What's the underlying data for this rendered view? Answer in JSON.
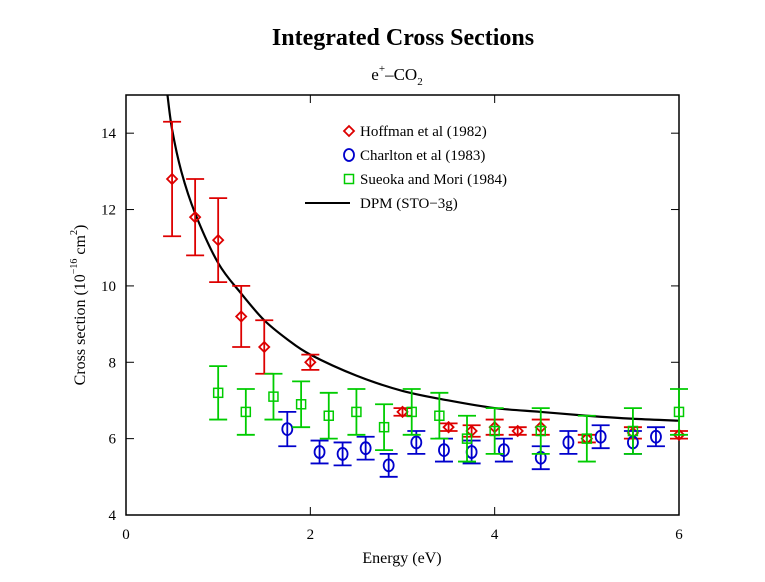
{
  "chart_data": {
    "type": "scatter",
    "title": "Integrated Cross Sections",
    "subtitle": {
      "base": "e",
      "sup": "+",
      "dash": "–",
      "mol": "CO",
      "sub": "2"
    },
    "xlabel": "Energy (eV)",
    "ylabel": {
      "prefix": "Cross section (10",
      "sup": "−16",
      "mid": " cm",
      "sup2": "2",
      "suffix": ")"
    },
    "xlim": [
      0,
      6
    ],
    "ylim": [
      4,
      15
    ],
    "xticks": [
      "0",
      "2",
      "4",
      "6"
    ],
    "yticks": [
      "4",
      "6",
      "8",
      "10",
      "12",
      "14"
    ],
    "legend_position": "top-right",
    "grid": false,
    "series": [
      {
        "name": "Hoffman et al (1982)",
        "marker": "diamond",
        "color": "#dd0000",
        "points": [
          {
            "x": 0.5,
            "y": 12.8,
            "err": 1.5
          },
          {
            "x": 0.75,
            "y": 11.8,
            "err": 1.0
          },
          {
            "x": 1.0,
            "y": 11.2,
            "err": 1.1
          },
          {
            "x": 1.25,
            "y": 9.2,
            "err": 0.8
          },
          {
            "x": 1.5,
            "y": 8.4,
            "err": 0.7
          },
          {
            "x": 2.0,
            "y": 8.0,
            "err": 0.2
          },
          {
            "x": 3.0,
            "y": 6.7,
            "err": 0.1
          },
          {
            "x": 3.5,
            "y": 6.3,
            "err": 0.1
          },
          {
            "x": 3.75,
            "y": 6.2,
            "err": 0.15
          },
          {
            "x": 4.0,
            "y": 6.3,
            "err": 0.2
          },
          {
            "x": 4.25,
            "y": 6.2,
            "err": 0.1
          },
          {
            "x": 4.5,
            "y": 6.3,
            "err": 0.2
          },
          {
            "x": 5.0,
            "y": 6.0,
            "err": 0.1
          },
          {
            "x": 5.5,
            "y": 6.15,
            "err": 0.15
          },
          {
            "x": 6.0,
            "y": 6.1,
            "err": 0.1
          }
        ]
      },
      {
        "name": "Charlton et al (1983)",
        "marker": "circle",
        "color": "#0000cc",
        "points": [
          {
            "x": 1.75,
            "y": 6.25,
            "err": 0.45
          },
          {
            "x": 2.1,
            "y": 5.65,
            "err": 0.3
          },
          {
            "x": 2.35,
            "y": 5.6,
            "err": 0.3
          },
          {
            "x": 2.6,
            "y": 5.75,
            "err": 0.3
          },
          {
            "x": 2.85,
            "y": 5.3,
            "err": 0.3
          },
          {
            "x": 3.15,
            "y": 5.9,
            "err": 0.3
          },
          {
            "x": 3.45,
            "y": 5.7,
            "err": 0.3
          },
          {
            "x": 3.75,
            "y": 5.65,
            "err": 0.3
          },
          {
            "x": 4.1,
            "y": 5.7,
            "err": 0.3
          },
          {
            "x": 4.5,
            "y": 5.5,
            "err": 0.3
          },
          {
            "x": 4.8,
            "y": 5.9,
            "err": 0.3
          },
          {
            "x": 5.15,
            "y": 6.05,
            "err": 0.3
          },
          {
            "x": 5.5,
            "y": 5.9,
            "err": 0.3
          },
          {
            "x": 5.75,
            "y": 6.05,
            "err": 0.25
          }
        ]
      },
      {
        "name": "Sueoka and Mori (1984)",
        "marker": "square",
        "color": "#00cc00",
        "points": [
          {
            "x": 1.0,
            "y": 7.2,
            "err": 0.7
          },
          {
            "x": 1.3,
            "y": 6.7,
            "err": 0.6
          },
          {
            "x": 1.6,
            "y": 7.1,
            "err": 0.6
          },
          {
            "x": 1.9,
            "y": 6.9,
            "err": 0.6
          },
          {
            "x": 2.2,
            "y": 6.6,
            "err": 0.6
          },
          {
            "x": 2.5,
            "y": 6.7,
            "err": 0.6
          },
          {
            "x": 2.8,
            "y": 6.3,
            "err": 0.6
          },
          {
            "x": 3.1,
            "y": 6.7,
            "err": 0.6
          },
          {
            "x": 3.4,
            "y": 6.6,
            "err": 0.6
          },
          {
            "x": 3.7,
            "y": 6.0,
            "err": 0.6
          },
          {
            "x": 4.0,
            "y": 6.2,
            "err": 0.6
          },
          {
            "x": 4.5,
            "y": 6.2,
            "err": 0.6
          },
          {
            "x": 5.0,
            "y": 6.0,
            "err": 0.6
          },
          {
            "x": 5.5,
            "y": 6.2,
            "err": 0.6
          },
          {
            "x": 6.0,
            "y": 6.7,
            "err": 0.6
          }
        ]
      },
      {
        "name": "DPM (STO−3g)",
        "marker": "line",
        "color": "#000000",
        "points": [
          {
            "x": 0.45,
            "y": 15.0
          },
          {
            "x": 0.5,
            "y": 14.1
          },
          {
            "x": 0.6,
            "y": 13.0
          },
          {
            "x": 0.75,
            "y": 11.9
          },
          {
            "x": 1.0,
            "y": 10.6
          },
          {
            "x": 1.25,
            "y": 9.8
          },
          {
            "x": 1.5,
            "y": 9.1
          },
          {
            "x": 1.75,
            "y": 8.6
          },
          {
            "x": 2.0,
            "y": 8.2
          },
          {
            "x": 2.5,
            "y": 7.65
          },
          {
            "x": 3.0,
            "y": 7.25
          },
          {
            "x": 3.5,
            "y": 7.0
          },
          {
            "x": 4.0,
            "y": 6.8
          },
          {
            "x": 4.5,
            "y": 6.7
          },
          {
            "x": 5.0,
            "y": 6.6
          },
          {
            "x": 5.5,
            "y": 6.52
          },
          {
            "x": 6.0,
            "y": 6.47
          }
        ]
      }
    ]
  }
}
